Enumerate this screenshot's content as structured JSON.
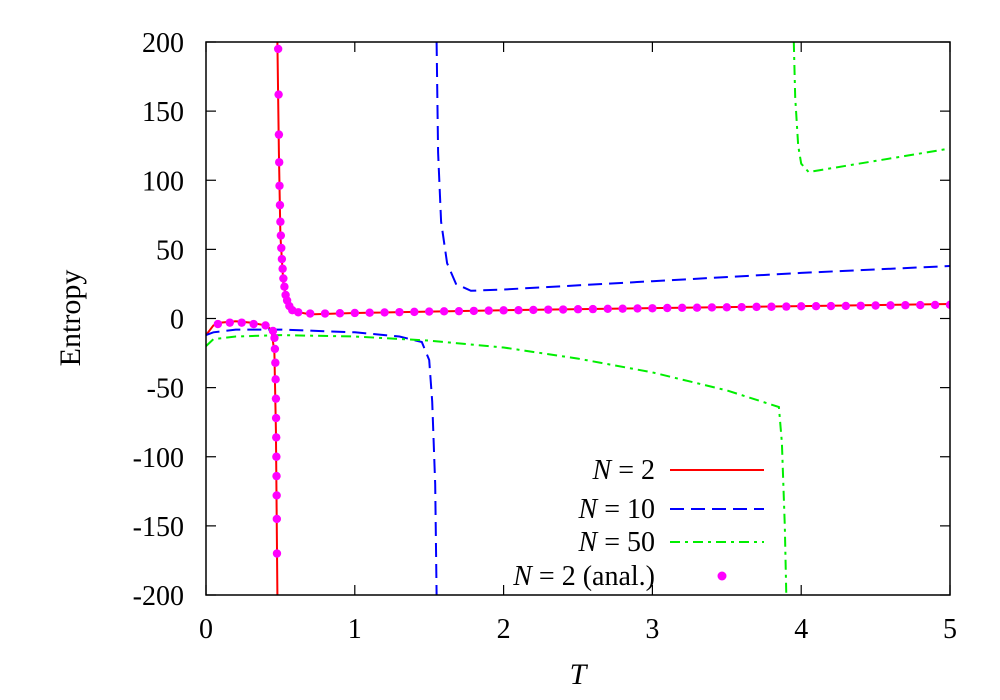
{
  "chart_data": {
    "type": "line",
    "title": "",
    "xlabel": "T",
    "ylabel": "Entropy",
    "xlim": [
      0,
      5
    ],
    "ylim": [
      -200,
      200
    ],
    "x_ticks": [
      "0",
      "1",
      "2",
      "3",
      "4",
      "5"
    ],
    "y_ticks": [
      "-200",
      "-150",
      "-100",
      "-50",
      "0",
      "50",
      "100",
      "150",
      "200"
    ],
    "grid": false,
    "legend_position": "bottom-right",
    "series": [
      {
        "name": "N =   2",
        "style": "solid",
        "color": "#ff0000",
        "segments": [
          [
            [
              0.0,
              -12
            ],
            [
              0.05,
              -5
            ],
            [
              0.1,
              -3
            ],
            [
              0.2,
              -2
            ],
            [
              0.3,
              -3
            ],
            [
              0.4,
              -5
            ],
            [
              0.44,
              -8
            ],
            [
              0.46,
              -25
            ],
            [
              0.47,
              -80
            ],
            [
              0.48,
              -200
            ]
          ],
          [
            [
              0.48,
              200
            ],
            [
              0.49,
              120
            ],
            [
              0.5,
              60
            ],
            [
              0.52,
              25
            ],
            [
              0.55,
              10
            ],
            [
              0.6,
              5
            ],
            [
              0.7,
              3
            ],
            [
              1.0,
              4
            ],
            [
              2.0,
              6
            ],
            [
              3.0,
              7.5
            ],
            [
              4.0,
              9
            ],
            [
              5.0,
              10.5
            ]
          ]
        ]
      },
      {
        "name": "N = 10",
        "style": "dashed",
        "color": "#0000ff",
        "segments": [
          [
            [
              0.0,
              -12
            ],
            [
              0.05,
              -10
            ],
            [
              0.2,
              -8
            ],
            [
              0.5,
              -8
            ],
            [
              1.0,
              -10
            ],
            [
              1.3,
              -13
            ],
            [
              1.45,
              -17
            ],
            [
              1.5,
              -30
            ],
            [
              1.52,
              -60
            ],
            [
              1.54,
              -120
            ],
            [
              1.55,
              -200
            ]
          ],
          [
            [
              1.55,
              200
            ],
            [
              1.56,
              120
            ],
            [
              1.58,
              70
            ],
            [
              1.62,
              40
            ],
            [
              1.68,
              25
            ],
            [
              1.78,
              20
            ],
            [
              2.0,
              21
            ],
            [
              3.0,
              27
            ],
            [
              4.0,
              33
            ],
            [
              5.0,
              38
            ]
          ]
        ]
      },
      {
        "name": "N = 50",
        "style": "dashdot",
        "color": "#00ee00",
        "segments": [
          [
            [
              0.0,
              -20
            ],
            [
              0.05,
              -15
            ],
            [
              0.2,
              -13
            ],
            [
              0.5,
              -12
            ],
            [
              1.0,
              -13
            ],
            [
              1.5,
              -16
            ],
            [
              2.0,
              -21
            ],
            [
              2.5,
              -29
            ],
            [
              3.0,
              -39
            ],
            [
              3.5,
              -52
            ],
            [
              3.85,
              -64
            ],
            [
              3.87,
              -90
            ],
            [
              3.89,
              -150
            ],
            [
              3.9,
              -200
            ]
          ],
          [
            [
              3.95,
              200
            ],
            [
              3.96,
              160
            ],
            [
              3.98,
              125
            ],
            [
              4.0,
              112
            ],
            [
              4.05,
              106
            ],
            [
              4.5,
              114
            ],
            [
              5.0,
              123
            ]
          ]
        ]
      },
      {
        "name": "N = 2 (anal.)",
        "style": "points",
        "color": "#ff00ff",
        "segments": [
          [
            [
              0.08,
              -4
            ],
            [
              0.16,
              -3
            ],
            [
              0.24,
              -3
            ],
            [
              0.32,
              -4
            ],
            [
              0.4,
              -5
            ],
            [
              0.45,
              -9
            ],
            [
              0.46,
              -14
            ],
            [
              0.463,
              -22
            ],
            [
              0.466,
              -32
            ],
            [
              0.468,
              -44
            ],
            [
              0.47,
              -58
            ],
            [
              0.471,
              -72
            ],
            [
              0.472,
              -86
            ],
            [
              0.473,
              -100
            ],
            [
              0.474,
              -114
            ],
            [
              0.475,
              -128
            ],
            [
              0.476,
              -145
            ],
            [
              0.477,
              -170
            ]
          ],
          [
            [
              0.485,
              195
            ],
            [
              0.488,
              162
            ],
            [
              0.49,
              133
            ],
            [
              0.492,
              113
            ],
            [
              0.494,
              96
            ],
            [
              0.497,
              82
            ],
            [
              0.5,
              70
            ],
            [
              0.503,
              60
            ],
            [
              0.506,
              51
            ],
            [
              0.51,
              43
            ],
            [
              0.515,
              36
            ],
            [
              0.52,
              29
            ],
            [
              0.527,
              23
            ],
            [
              0.535,
              17
            ],
            [
              0.545,
              13
            ],
            [
              0.56,
              9
            ],
            [
              0.58,
              6
            ],
            [
              0.62,
              4.5
            ],
            [
              0.7,
              3.6
            ],
            [
              0.8,
              3.6
            ],
            [
              0.9,
              3.8
            ],
            [
              1.0,
              4.0
            ],
            [
              1.1,
              4.2
            ],
            [
              1.2,
              4.4
            ],
            [
              1.3,
              4.6
            ],
            [
              1.4,
              4.8
            ],
            [
              1.5,
              5.0
            ],
            [
              1.6,
              5.2
            ],
            [
              1.7,
              5.3
            ],
            [
              1.8,
              5.5
            ],
            [
              1.9,
              5.7
            ],
            [
              2.0,
              5.9
            ],
            [
              2.1,
              6.0
            ],
            [
              2.2,
              6.2
            ],
            [
              2.3,
              6.4
            ],
            [
              2.4,
              6.5
            ],
            [
              2.5,
              6.7
            ],
            [
              2.6,
              6.8
            ],
            [
              2.7,
              7.0
            ],
            [
              2.8,
              7.1
            ],
            [
              2.9,
              7.3
            ],
            [
              3.0,
              7.4
            ],
            [
              3.1,
              7.6
            ],
            [
              3.2,
              7.7
            ],
            [
              3.3,
              7.8
            ],
            [
              3.4,
              8.0
            ],
            [
              3.5,
              8.1
            ],
            [
              3.6,
              8.2
            ],
            [
              3.7,
              8.4
            ],
            [
              3.8,
              8.5
            ],
            [
              3.9,
              8.6
            ],
            [
              4.0,
              8.8
            ],
            [
              4.1,
              8.9
            ],
            [
              4.2,
              9.0
            ],
            [
              4.3,
              9.1
            ],
            [
              4.4,
              9.2
            ],
            [
              4.5,
              9.4
            ],
            [
              4.6,
              9.5
            ],
            [
              4.7,
              9.6
            ],
            [
              4.8,
              9.7
            ],
            [
              4.9,
              9.8
            ],
            [
              5.0,
              9.9
            ]
          ]
        ]
      }
    ]
  }
}
